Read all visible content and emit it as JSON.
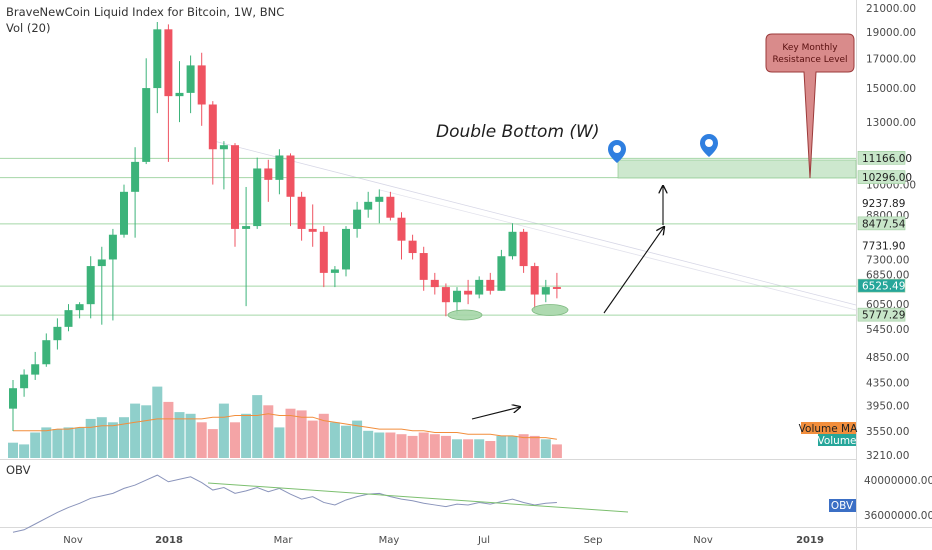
{
  "header": {
    "title": "BraveNewCoin Liquid Index for Bitcoin, 1W, BNC",
    "vol_label": "Vol (20)",
    "obv_label": "OBV"
  },
  "annotations": {
    "double_bottom": "Double Bottom (W)",
    "callout_line1": "Key Monthly",
    "callout_line2": "Resistance Level"
  },
  "price_axis": {
    "ticks": [
      "21000.00",
      "19000.00",
      "17000.00",
      "15000.00",
      "13000.00",
      "10000.00",
      "8800.00",
      "7300.00",
      "6850.00",
      "6050.00",
      "5450.00",
      "4850.00",
      "4350.00",
      "3950.00",
      "3550.00",
      "3210.00"
    ]
  },
  "level_labels": [
    {
      "text": "11166.00",
      "value": 11166,
      "fill": "#c8e6c9"
    },
    {
      "text": "10296.00",
      "value": 10296,
      "fill": "#c8e6c9"
    },
    {
      "text": "9237.89",
      "value": 9237.89,
      "fill": "#ffffff"
    },
    {
      "text": "8477.54",
      "value": 8477.54,
      "fill": "#c8e6c9"
    },
    {
      "text": "7731.90",
      "value": 7731.9,
      "fill": "#ffffff"
    },
    {
      "text": "6525.49",
      "value": 6525.49,
      "fill": "#26a69a"
    },
    {
      "text": "5777.29",
      "value": 5777.29,
      "fill": "#c8e6c9"
    }
  ],
  "volume_legend": {
    "ma_label": "Volume MA",
    "vol_label": "Volume"
  },
  "obv_axis": {
    "ticks": [
      "40000000.000",
      "36000000.000"
    ],
    "current_label": "OBV"
  },
  "x_axis": {
    "ticks": [
      "Nov",
      "2018",
      "Mar",
      "May",
      "Jul",
      "Sep",
      "Nov",
      "2019"
    ]
  },
  "colors": {
    "up": "#3cb37a",
    "down": "#ef5361",
    "vol_up": "#8fcfcb",
    "vol_down": "#f4a4a6",
    "volume_ma": "#f28e3c",
    "obv_line": "#8a94bb",
    "support_line": "#a5d6a7",
    "resistance_zone": "#c8e6c9",
    "marker_blue": "#2f7fe0",
    "callout_fill": "#d98b8b",
    "obv_badge": "#3b6fc5"
  },
  "chart_data": {
    "type": "candlestick",
    "title": "BraveNewCoin Liquid Index for Bitcoin, 1W, BNC",
    "y_scale": "log",
    "price_ylim": [
      3210,
      21000
    ],
    "candles": [
      {
        "o": 3900,
        "c": 4250,
        "h": 4400,
        "l": 3550,
        "v": 0.09
      },
      {
        "o": 4250,
        "c": 4500,
        "h": 4600,
        "l": 4100,
        "v": 0.08
      },
      {
        "o": 4500,
        "c": 4700,
        "h": 4950,
        "l": 4400,
        "v": 0.15
      },
      {
        "o": 4700,
        "c": 5200,
        "h": 5350,
        "l": 4650,
        "v": 0.18
      },
      {
        "o": 5200,
        "c": 5500,
        "h": 5700,
        "l": 5000,
        "v": 0.17
      },
      {
        "o": 5500,
        "c": 5900,
        "h": 6050,
        "l": 5400,
        "v": 0.18
      },
      {
        "o": 5900,
        "c": 6050,
        "h": 6100,
        "l": 5700,
        "v": 0.18
      },
      {
        "o": 6050,
        "c": 7100,
        "h": 7400,
        "l": 5700,
        "v": 0.23
      },
      {
        "o": 7100,
        "c": 7300,
        "h": 7700,
        "l": 5550,
        "v": 0.24
      },
      {
        "o": 7300,
        "c": 8100,
        "h": 8300,
        "l": 5650,
        "v": 0.21
      },
      {
        "o": 8100,
        "c": 9700,
        "h": 10000,
        "l": 8000,
        "v": 0.24
      },
      {
        "o": 9700,
        "c": 11000,
        "h": 11700,
        "l": 8000,
        "v": 0.32
      },
      {
        "o": 11000,
        "c": 15000,
        "h": 17000,
        "l": 10900,
        "v": 0.31
      },
      {
        "o": 15000,
        "c": 19200,
        "h": 19800,
        "l": 13500,
        "v": 0.42
      },
      {
        "o": 19200,
        "c": 14500,
        "h": 19600,
        "l": 11000,
        "v": 0.33
      },
      {
        "o": 14500,
        "c": 14700,
        "h": 16800,
        "l": 13000,
        "v": 0.27
      },
      {
        "o": 14700,
        "c": 16500,
        "h": 17200,
        "l": 13500,
        "v": 0.26
      },
      {
        "o": 16500,
        "c": 14000,
        "h": 17400,
        "l": 12800,
        "v": 0.21
      },
      {
        "o": 14000,
        "c": 11600,
        "h": 14200,
        "l": 10000,
        "v": 0.17
      },
      {
        "o": 11600,
        "c": 11800,
        "h": 12000,
        "l": 9800,
        "v": 0.32
      },
      {
        "o": 11800,
        "c": 8300,
        "h": 11900,
        "l": 7700,
        "v": 0.21
      },
      {
        "o": 8300,
        "c": 8400,
        "h": 9900,
        "l": 6000,
        "v": 0.26
      },
      {
        "o": 8400,
        "c": 10700,
        "h": 11200,
        "l": 8300,
        "v": 0.37
      },
      {
        "o": 10700,
        "c": 10200,
        "h": 11100,
        "l": 9300,
        "v": 0.31
      },
      {
        "o": 10200,
        "c": 11300,
        "h": 11600,
        "l": 9600,
        "v": 0.18
      },
      {
        "o": 11300,
        "c": 9500,
        "h": 11400,
        "l": 8400,
        "v": 0.29
      },
      {
        "o": 9500,
        "c": 8300,
        "h": 9700,
        "l": 7900,
        "v": 0.28
      },
      {
        "o": 8300,
        "c": 8200,
        "h": 9200,
        "l": 7700,
        "v": 0.22
      },
      {
        "o": 8200,
        "c": 6900,
        "h": 8400,
        "l": 6500,
        "v": 0.26
      },
      {
        "o": 6900,
        "c": 7000,
        "h": 7100,
        "l": 6500,
        "v": 0.21
      },
      {
        "o": 7000,
        "c": 8300,
        "h": 8400,
        "l": 6800,
        "v": 0.19
      },
      {
        "o": 8300,
        "c": 9000,
        "h": 9300,
        "l": 8000,
        "v": 0.22
      },
      {
        "o": 9000,
        "c": 9300,
        "h": 9700,
        "l": 8700,
        "v": 0.16
      },
      {
        "o": 9300,
        "c": 9500,
        "h": 9800,
        "l": 8500,
        "v": 0.15
      },
      {
        "o": 9500,
        "c": 8700,
        "h": 9700,
        "l": 8600,
        "v": 0.15
      },
      {
        "o": 8700,
        "c": 7900,
        "h": 8900,
        "l": 7300,
        "v": 0.14
      },
      {
        "o": 7900,
        "c": 7500,
        "h": 8100,
        "l": 7300,
        "v": 0.13
      },
      {
        "o": 7500,
        "c": 6700,
        "h": 7700,
        "l": 6400,
        "v": 0.15
      },
      {
        "o": 6700,
        "c": 6500,
        "h": 6900,
        "l": 6300,
        "v": 0.14
      },
      {
        "o": 6500,
        "c": 6100,
        "h": 6600,
        "l": 5750,
        "v": 0.13
      },
      {
        "o": 6100,
        "c": 6400,
        "h": 6500,
        "l": 5800,
        "v": 0.11
      },
      {
        "o": 6400,
        "c": 6300,
        "h": 6700,
        "l": 6050,
        "v": 0.11
      },
      {
        "o": 6300,
        "c": 6700,
        "h": 6800,
        "l": 6200,
        "v": 0.11
      },
      {
        "o": 6700,
        "c": 6400,
        "h": 6900,
        "l": 6300,
        "v": 0.1
      },
      {
        "o": 6400,
        "c": 7400,
        "h": 7600,
        "l": 6400,
        "v": 0.13
      },
      {
        "o": 7400,
        "c": 8200,
        "h": 8500,
        "l": 7300,
        "v": 0.13
      },
      {
        "o": 8200,
        "c": 7100,
        "h": 8300,
        "l": 6900,
        "v": 0.14
      },
      {
        "o": 7100,
        "c": 6300,
        "h": 7200,
        "l": 5900,
        "v": 0.13
      },
      {
        "o": 6300,
        "c": 6500,
        "h": 6700,
        "l": 6100,
        "v": 0.11
      },
      {
        "o": 6500,
        "c": 6450,
        "h": 6900,
        "l": 6200,
        "v": 0.08
      }
    ],
    "volume_ma": [
      0.16,
      0.16,
      0.16,
      0.16,
      0.17,
      0.17,
      0.18,
      0.18,
      0.19,
      0.19,
      0.2,
      0.21,
      0.22,
      0.23,
      0.23,
      0.23,
      0.23,
      0.23,
      0.24,
      0.24,
      0.25,
      0.25,
      0.25,
      0.26,
      0.25,
      0.25,
      0.24,
      0.24,
      0.22,
      0.21,
      0.2,
      0.19,
      0.18,
      0.17,
      0.17,
      0.17,
      0.16,
      0.16,
      0.15,
      0.15,
      0.15,
      0.14,
      0.14,
      0.14,
      0.13,
      0.13,
      0.12,
      0.12,
      0.12,
      0.11
    ],
    "obv_values": [
      33.5,
      33.8,
      34.5,
      35.2,
      35.9,
      36.5,
      37.0,
      37.6,
      37.9,
      38.2,
      38.8,
      39.2,
      39.8,
      40.4,
      39.6,
      39.9,
      40.2,
      39.5,
      38.6,
      38.9,
      38.2,
      38.5,
      38.9,
      38.4,
      38.8,
      38.1,
      37.5,
      37.8,
      37.1,
      36.8,
      37.4,
      37.8,
      38.1,
      38.2,
      37.8,
      37.5,
      37.3,
      37.0,
      36.8,
      36.6,
      36.9,
      36.8,
      37.1,
      36.9,
      37.2,
      37.5,
      37.1,
      36.8,
      37.0,
      37.1
    ],
    "obv_ylim": [
      34.5,
      41.5
    ],
    "support_levels": [
      5777.29,
      6525.49,
      8477.54,
      10296,
      11166
    ],
    "xlabel": "",
    "ylabel": ""
  }
}
